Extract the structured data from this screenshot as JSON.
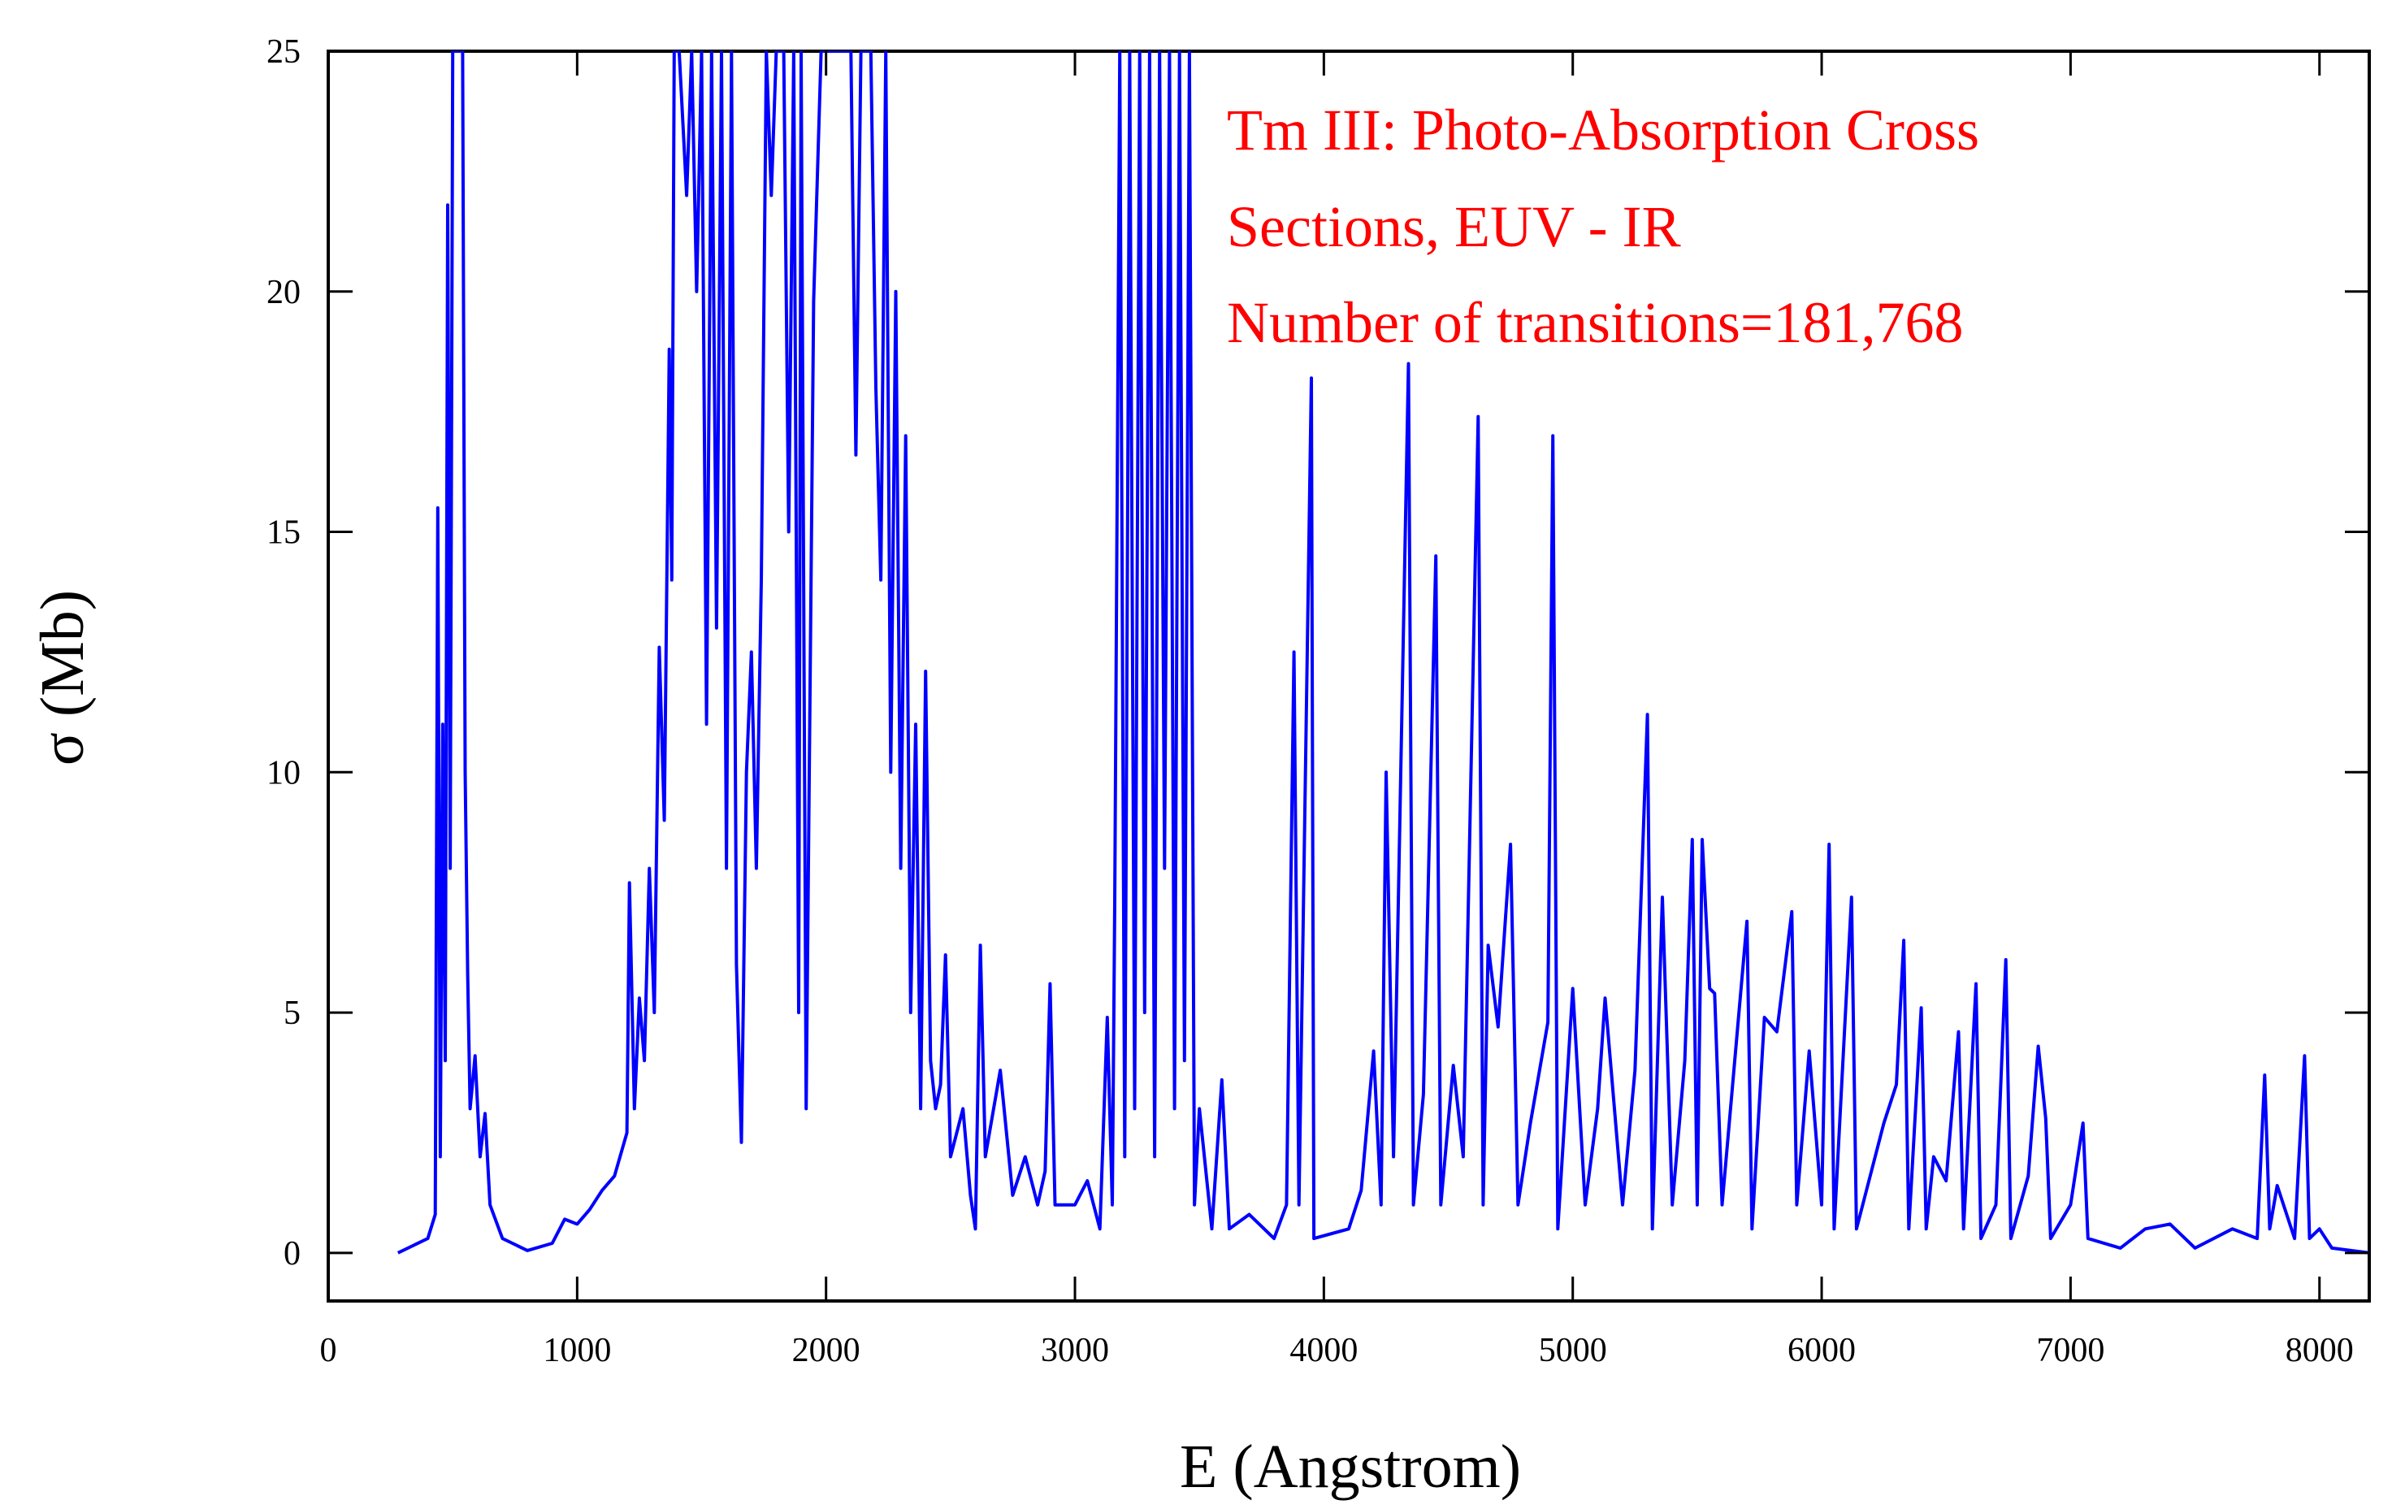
{
  "chart_data": {
    "type": "line",
    "annotations": [
      "Tm III: Photo-Absorption Cross",
      "Sections, EUV - IR",
      "Number of transitions=181,768"
    ],
    "xlabel": "E (Angstrom)",
    "ylabel": "σ (Mb)",
    "xlim": [
      0,
      8200
    ],
    "ylim": [
      -1,
      25
    ],
    "xticks": [
      0,
      1000,
      2000,
      3000,
      4000,
      5000,
      6000,
      7000,
      8000
    ],
    "yticks": [
      0,
      5,
      10,
      15,
      20,
      25
    ],
    "series": [
      {
        "color": "#0000ff",
        "x": [
          280,
          400,
          430,
          440,
          450,
          460,
          470,
          480,
          490,
          500,
          520,
          540,
          550,
          560,
          570,
          590,
          610,
          630,
          650,
          700,
          800,
          900,
          950,
          1000,
          1050,
          1100,
          1150,
          1200,
          1210,
          1230,
          1250,
          1270,
          1290,
          1310,
          1330,
          1350,
          1370,
          1380,
          1390,
          1410,
          1440,
          1460,
          1480,
          1500,
          1520,
          1540,
          1560,
          1580,
          1600,
          1620,
          1640,
          1660,
          1680,
          1700,
          1720,
          1740,
          1760,
          1780,
          1800,
          1830,
          1850,
          1870,
          1890,
          1900,
          1920,
          1950,
          1980,
          2050,
          2100,
          2120,
          2140,
          2180,
          2200,
          2220,
          2240,
          2260,
          2280,
          2300,
          2320,
          2340,
          2360,
          2380,
          2400,
          2420,
          2440,
          2460,
          2480,
          2500,
          2550,
          2580,
          2600,
          2620,
          2640,
          2700,
          2750,
          2800,
          2850,
          2880,
          2900,
          2920,
          3000,
          3050,
          3100,
          3130,
          3150,
          3160,
          3180,
          3200,
          3220,
          3240,
          3260,
          3280,
          3300,
          3320,
          3340,
          3360,
          3380,
          3400,
          3420,
          3440,
          3460,
          3480,
          3500,
          3550,
          3590,
          3620,
          3700,
          3800,
          3850,
          3880,
          3900,
          3950,
          3960,
          4100,
          4150,
          4200,
          4230,
          4250,
          4280,
          4340,
          4360,
          4400,
          4450,
          4470,
          4520,
          4560,
          4620,
          4640,
          4660,
          4700,
          4750,
          4780,
          4830,
          4900,
          4920,
          4940,
          5000,
          5050,
          5100,
          5130,
          5200,
          5250,
          5300,
          5320,
          5360,
          5400,
          5450,
          5480,
          5500,
          5520,
          5550,
          5570,
          5600,
          5700,
          5720,
          5770,
          5820,
          5880,
          5900,
          5950,
          6000,
          6030,
          6050,
          6120,
          6140,
          6250,
          6300,
          6330,
          6350,
          6400,
          6420,
          6450,
          6500,
          6550,
          6570,
          6620,
          6640,
          6700,
          6740,
          6760,
          6830,
          6870,
          6900,
          6920,
          7000,
          7050,
          7070,
          7200,
          7300,
          7400,
          7500,
          7650,
          7750,
          7780,
          7800,
          7830,
          7900,
          7940,
          7960,
          8000,
          8050,
          8200
        ],
        "values": [
          0,
          0.3,
          0.8,
          15.5,
          2,
          11,
          4,
          21.8,
          8,
          25,
          25,
          25,
          10,
          5.8,
          3,
          4.1,
          2,
          2.9,
          1,
          0.3,
          0.05,
          0.2,
          0.7,
          0.6,
          0.9,
          1.3,
          1.6,
          2.5,
          7.7,
          3,
          5.3,
          4,
          8,
          5,
          12.6,
          9,
          18.8,
          14,
          25,
          25,
          22,
          25,
          20,
          25,
          11,
          25,
          13,
          25,
          8,
          25,
          6,
          2.3,
          10,
          12.5,
          8,
          14,
          25,
          22,
          25,
          25,
          15,
          25,
          5,
          25,
          3,
          19.8,
          25,
          25,
          25,
          16.6,
          25,
          25,
          18,
          14,
          25,
          10,
          20,
          8,
          17,
          5,
          11,
          3,
          12.1,
          4,
          3,
          3.5,
          6.2,
          2,
          3,
          1.2,
          0.5,
          6.4,
          2,
          3.8,
          1.2,
          2,
          1,
          1.7,
          5.6,
          1,
          1,
          1.5,
          0.5,
          4.9,
          1,
          7.3,
          25,
          2,
          25,
          3,
          25,
          5,
          25,
          2,
          25,
          8,
          25,
          3,
          25,
          4,
          25,
          1,
          3,
          0.5,
          3.6,
          0.5,
          0.8,
          0.3,
          1,
          12.5,
          1,
          18.2,
          0.3,
          0.5,
          1.3,
          4.2,
          1,
          10,
          2,
          18.5,
          1,
          3.3,
          14.5,
          1,
          3.9,
          2,
          17.4,
          1,
          6.4,
          4.7,
          8.5,
          1,
          2.7,
          4.8,
          17,
          0.5,
          5.5,
          1,
          3,
          5.3,
          1,
          3.8,
          11.2,
          0.5,
          7.4,
          1,
          4,
          8.6,
          1,
          8.6,
          5.5,
          5.4,
          1,
          6.9,
          0.5,
          4.9,
          4.6,
          7.1,
          1,
          4.2,
          1,
          8.5,
          0.5,
          7.4,
          0.5,
          2.7,
          3.5,
          6.5,
          0.5,
          5.1,
          0.5,
          2,
          1.5,
          4.6,
          0.5,
          5.6,
          0.3,
          1,
          6.1,
          0.3,
          1.6,
          4.3,
          2.8,
          0.3,
          1,
          2.7,
          0.3,
          0.1,
          0.5,
          0.6,
          0.1,
          0.5,
          0.3,
          3.7,
          0.5,
          1.4,
          0.3,
          4.1,
          0.3,
          0.5,
          0.1,
          0
        ]
      }
    ]
  }
}
